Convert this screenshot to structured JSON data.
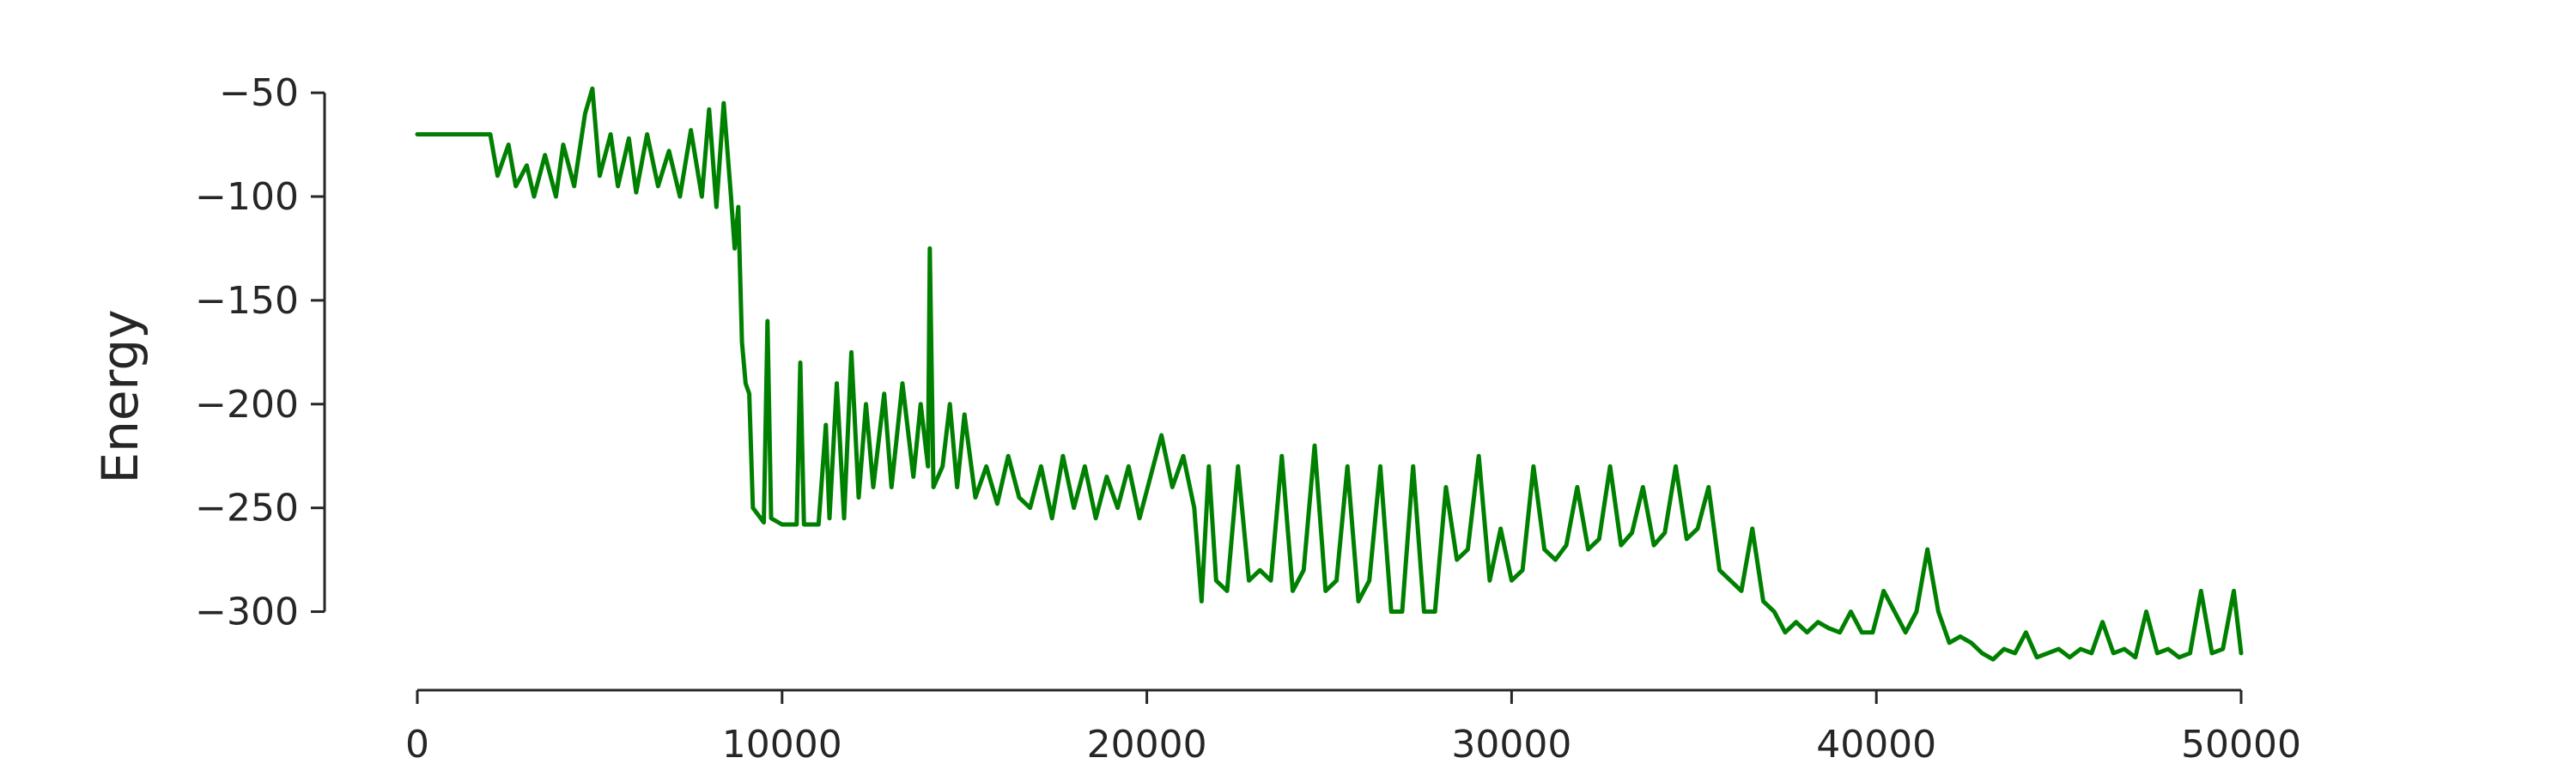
{
  "chart_data": {
    "type": "line",
    "title": "",
    "xlabel": "",
    "ylabel": "Energy",
    "xlim": [
      0,
      50000
    ],
    "ylim": [
      -325,
      -45
    ],
    "x_ticks": [
      0,
      10000,
      20000,
      30000,
      40000,
      50000
    ],
    "x_tick_labels": [
      "0",
      "10000",
      "20000",
      "30000",
      "40000",
      "50000"
    ],
    "y_ticks": [
      -50,
      -100,
      -150,
      -200,
      -250,
      -300
    ],
    "y_tick_labels": [
      "−50",
      "−100",
      "−150",
      "−200",
      "−250",
      "−300"
    ],
    "grid": false,
    "legend": "none",
    "series": [
      {
        "color": "#008000",
        "points": [
          [
            0,
            -70
          ],
          [
            2000,
            -70
          ],
          [
            2200,
            -90
          ],
          [
            2500,
            -75
          ],
          [
            2700,
            -95
          ],
          [
            3000,
            -85
          ],
          [
            3200,
            -100
          ],
          [
            3500,
            -80
          ],
          [
            3800,
            -100
          ],
          [
            4000,
            -75
          ],
          [
            4300,
            -95
          ],
          [
            4600,
            -60
          ],
          [
            4800,
            -48
          ],
          [
            5000,
            -90
          ],
          [
            5300,
            -70
          ],
          [
            5500,
            -95
          ],
          [
            5800,
            -72
          ],
          [
            6000,
            -98
          ],
          [
            6300,
            -70
          ],
          [
            6600,
            -95
          ],
          [
            6900,
            -78
          ],
          [
            7200,
            -100
          ],
          [
            7500,
            -68
          ],
          [
            7800,
            -100
          ],
          [
            8000,
            -58
          ],
          [
            8200,
            -105
          ],
          [
            8400,
            -55
          ],
          [
            8600,
            -100
          ],
          [
            8700,
            -125
          ],
          [
            8800,
            -105
          ],
          [
            8900,
            -170
          ],
          [
            9000,
            -190
          ],
          [
            9100,
            -195
          ],
          [
            9200,
            -250
          ],
          [
            9500,
            -257
          ],
          [
            9600,
            -160
          ],
          [
            9700,
            -255
          ],
          [
            10000,
            -258
          ],
          [
            10400,
            -258
          ],
          [
            10500,
            -180
          ],
          [
            10600,
            -258
          ],
          [
            11000,
            -258
          ],
          [
            11200,
            -210
          ],
          [
            11300,
            -255
          ],
          [
            11500,
            -190
          ],
          [
            11700,
            -255
          ],
          [
            11900,
            -175
          ],
          [
            12100,
            -245
          ],
          [
            12300,
            -200
          ],
          [
            12500,
            -240
          ],
          [
            12800,
            -195
          ],
          [
            13000,
            -240
          ],
          [
            13300,
            -190
          ],
          [
            13600,
            -235
          ],
          [
            13800,
            -200
          ],
          [
            14000,
            -230
          ],
          [
            14050,
            -125
          ],
          [
            14150,
            -240
          ],
          [
            14400,
            -230
          ],
          [
            14600,
            -200
          ],
          [
            14800,
            -240
          ],
          [
            15000,
            -205
          ],
          [
            15300,
            -245
          ],
          [
            15600,
            -230
          ],
          [
            15900,
            -248
          ],
          [
            16200,
            -225
          ],
          [
            16500,
            -245
          ],
          [
            16800,
            -250
          ],
          [
            17100,
            -230
          ],
          [
            17400,
            -255
          ],
          [
            17700,
            -225
          ],
          [
            18000,
            -250
          ],
          [
            18300,
            -230
          ],
          [
            18600,
            -255
          ],
          [
            18900,
            -235
          ],
          [
            19200,
            -250
          ],
          [
            19500,
            -230
          ],
          [
            19800,
            -255
          ],
          [
            20100,
            -235
          ],
          [
            20400,
            -215
          ],
          [
            20700,
            -240
          ],
          [
            21000,
            -225
          ],
          [
            21300,
            -250
          ],
          [
            21500,
            -295
          ],
          [
            21700,
            -230
          ],
          [
            21900,
            -285
          ],
          [
            22200,
            -290
          ],
          [
            22500,
            -230
          ],
          [
            22800,
            -285
          ],
          [
            23100,
            -280
          ],
          [
            23400,
            -285
          ],
          [
            23700,
            -225
          ],
          [
            24000,
            -290
          ],
          [
            24300,
            -280
          ],
          [
            24600,
            -220
          ],
          [
            24900,
            -290
          ],
          [
            25200,
            -285
          ],
          [
            25500,
            -230
          ],
          [
            25800,
            -295
          ],
          [
            26100,
            -285
          ],
          [
            26400,
            -230
          ],
          [
            26700,
            -300
          ],
          [
            27000,
            -300
          ],
          [
            27300,
            -230
          ],
          [
            27600,
            -300
          ],
          [
            27900,
            -300
          ],
          [
            28200,
            -240
          ],
          [
            28500,
            -275
          ],
          [
            28800,
            -270
          ],
          [
            29100,
            -225
          ],
          [
            29400,
            -285
          ],
          [
            29700,
            -260
          ],
          [
            30000,
            -285
          ],
          [
            30300,
            -280
          ],
          [
            30600,
            -230
          ],
          [
            30900,
            -270
          ],
          [
            31200,
            -275
          ],
          [
            31500,
            -268
          ],
          [
            31800,
            -240
          ],
          [
            32100,
            -270
          ],
          [
            32400,
            -265
          ],
          [
            32700,
            -230
          ],
          [
            33000,
            -268
          ],
          [
            33300,
            -262
          ],
          [
            33600,
            -240
          ],
          [
            33900,
            -268
          ],
          [
            34200,
            -262
          ],
          [
            34500,
            -230
          ],
          [
            34800,
            -265
          ],
          [
            35100,
            -260
          ],
          [
            35400,
            -240
          ],
          [
            35700,
            -280
          ],
          [
            36000,
            -285
          ],
          [
            36300,
            -290
          ],
          [
            36600,
            -260
          ],
          [
            36900,
            -295
          ],
          [
            37200,
            -300
          ],
          [
            37500,
            -310
          ],
          [
            37800,
            -305
          ],
          [
            38100,
            -310
          ],
          [
            38400,
            -305
          ],
          [
            38700,
            -308
          ],
          [
            39000,
            -310
          ],
          [
            39300,
            -300
          ],
          [
            39600,
            -310
          ],
          [
            39900,
            -310
          ],
          [
            40200,
            -290
          ],
          [
            40500,
            -300
          ],
          [
            40800,
            -310
          ],
          [
            41100,
            -300
          ],
          [
            41400,
            -270
          ],
          [
            41700,
            -300
          ],
          [
            42000,
            -315
          ],
          [
            42300,
            -312
          ],
          [
            42600,
            -315
          ],
          [
            42900,
            -320
          ],
          [
            43200,
            -323
          ],
          [
            43500,
            -318
          ],
          [
            43800,
            -320
          ],
          [
            44100,
            -310
          ],
          [
            44400,
            -322
          ],
          [
            44700,
            -320
          ],
          [
            45000,
            -318
          ],
          [
            45300,
            -322
          ],
          [
            45600,
            -318
          ],
          [
            45900,
            -320
          ],
          [
            46200,
            -305
          ],
          [
            46500,
            -320
          ],
          [
            46800,
            -318
          ],
          [
            47100,
            -322
          ],
          [
            47400,
            -300
          ],
          [
            47700,
            -320
          ],
          [
            48000,
            -318
          ],
          [
            48300,
            -322
          ],
          [
            48600,
            -320
          ],
          [
            48900,
            -290
          ],
          [
            49200,
            -320
          ],
          [
            49500,
            -318
          ],
          [
            49800,
            -290
          ],
          [
            50000,
            -320
          ]
        ]
      }
    ]
  }
}
